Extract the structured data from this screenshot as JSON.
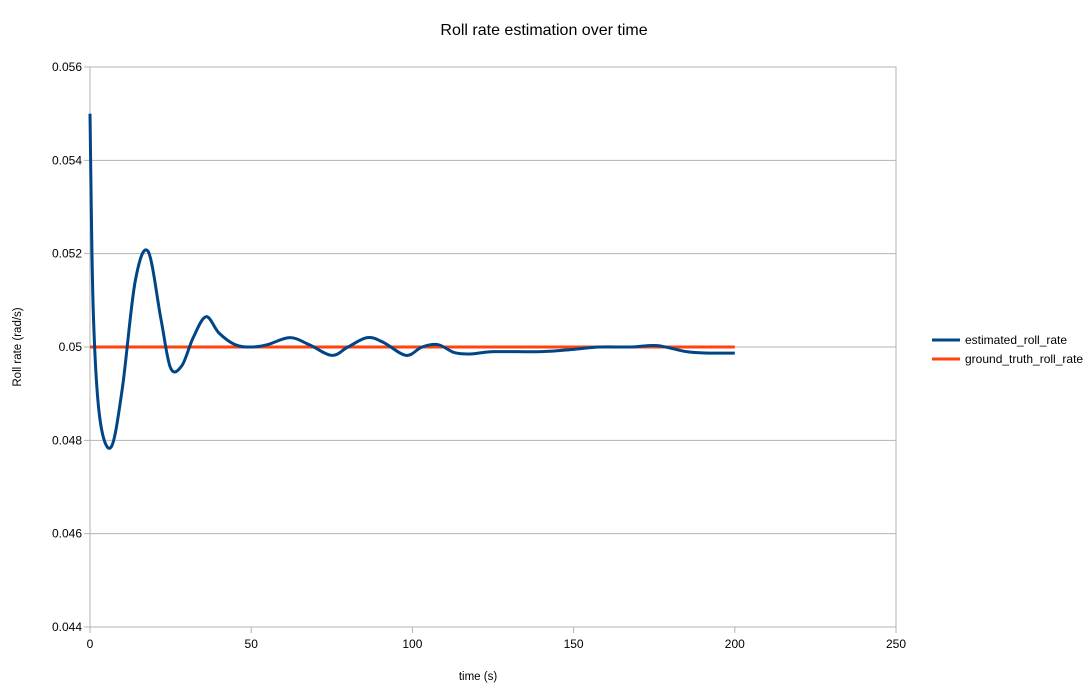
{
  "chart_data": {
    "type": "line",
    "title": "Roll rate estimation over time",
    "xlabel": "time (s)",
    "ylabel": "Roll rate (rad/s)",
    "xlim": [
      0,
      250
    ],
    "ylim": [
      0.044,
      0.056
    ],
    "x_ticks": [
      "0",
      "50",
      "100",
      "150",
      "200",
      "250"
    ],
    "y_ticks": [
      "0.044",
      "0.046",
      "0.048",
      "0.05",
      "0.052",
      "0.054",
      "0.056"
    ],
    "grid": "horizontal",
    "legend_position": "right",
    "series": [
      {
        "name": "estimated_roll_rate",
        "color": "#004586",
        "x": [
          0,
          1,
          3,
          6.5,
          10,
          14,
          18,
          22,
          25,
          28.5,
          32,
          36,
          40,
          45,
          50,
          55,
          62,
          68,
          75,
          80,
          86,
          91,
          98,
          103,
          108,
          113,
          118,
          125,
          140,
          150,
          158,
          168,
          176,
          185,
          192,
          200
        ],
        "y": [
          0.055,
          0.0508,
          0.0485,
          0.04785,
          0.0491,
          0.0514,
          0.05205,
          0.0506,
          0.04955,
          0.0496,
          0.0502,
          0.05065,
          0.0503,
          0.05005,
          0.05,
          0.05005,
          0.0502,
          0.05005,
          0.04982,
          0.05,
          0.0502,
          0.0501,
          0.04982,
          0.05,
          0.05005,
          0.04988,
          0.04985,
          0.0499,
          0.0499,
          0.04995,
          0.05,
          0.05,
          0.05003,
          0.0499,
          0.04987,
          0.04987
        ]
      },
      {
        "name": "ground_truth_roll_rate",
        "color": "#ff420e",
        "x": [
          0,
          200
        ],
        "y": [
          0.05,
          0.05
        ]
      }
    ]
  }
}
